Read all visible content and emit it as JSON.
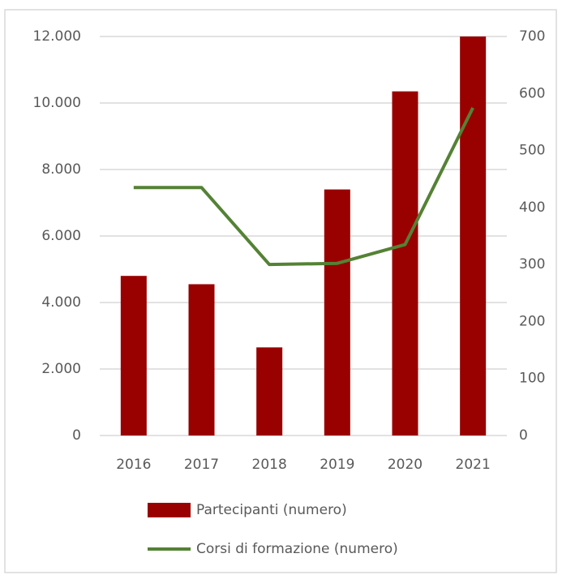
{
  "chart_data": {
    "type": "bar",
    "categories": [
      "2016",
      "2017",
      "2018",
      "2019",
      "2020",
      "2021"
    ],
    "series": [
      {
        "name": "Partecipanti (numero)",
        "type": "bar",
        "color": "#990000",
        "values": [
          4800,
          4550,
          2650,
          7400,
          10350,
          12000
        ]
      },
      {
        "name": "Corsi di formazione (numero)",
        "type": "line",
        "axis": "y2",
        "color": "#548235",
        "values": [
          435,
          435,
          300,
          302,
          335,
          575
        ]
      }
    ],
    "ylim": [
      0,
      12000
    ],
    "yticks": [
      0,
      {
        "value": 2000,
        "label": "2.000"
      },
      {
        "value": 4000,
        "label": "4.000"
      },
      {
        "value": 6000,
        "label": "6.000"
      },
      {
        "value": 8000,
        "label": "8.000"
      },
      {
        "value": 10000,
        "label": "10.000"
      },
      {
        "value": 12000,
        "label": "12.000"
      }
    ],
    "y2lim": [
      0,
      700
    ],
    "y2ticks": [
      0,
      100,
      200,
      300,
      400,
      500,
      600,
      700
    ],
    "grid": true,
    "legend": "bottom"
  }
}
